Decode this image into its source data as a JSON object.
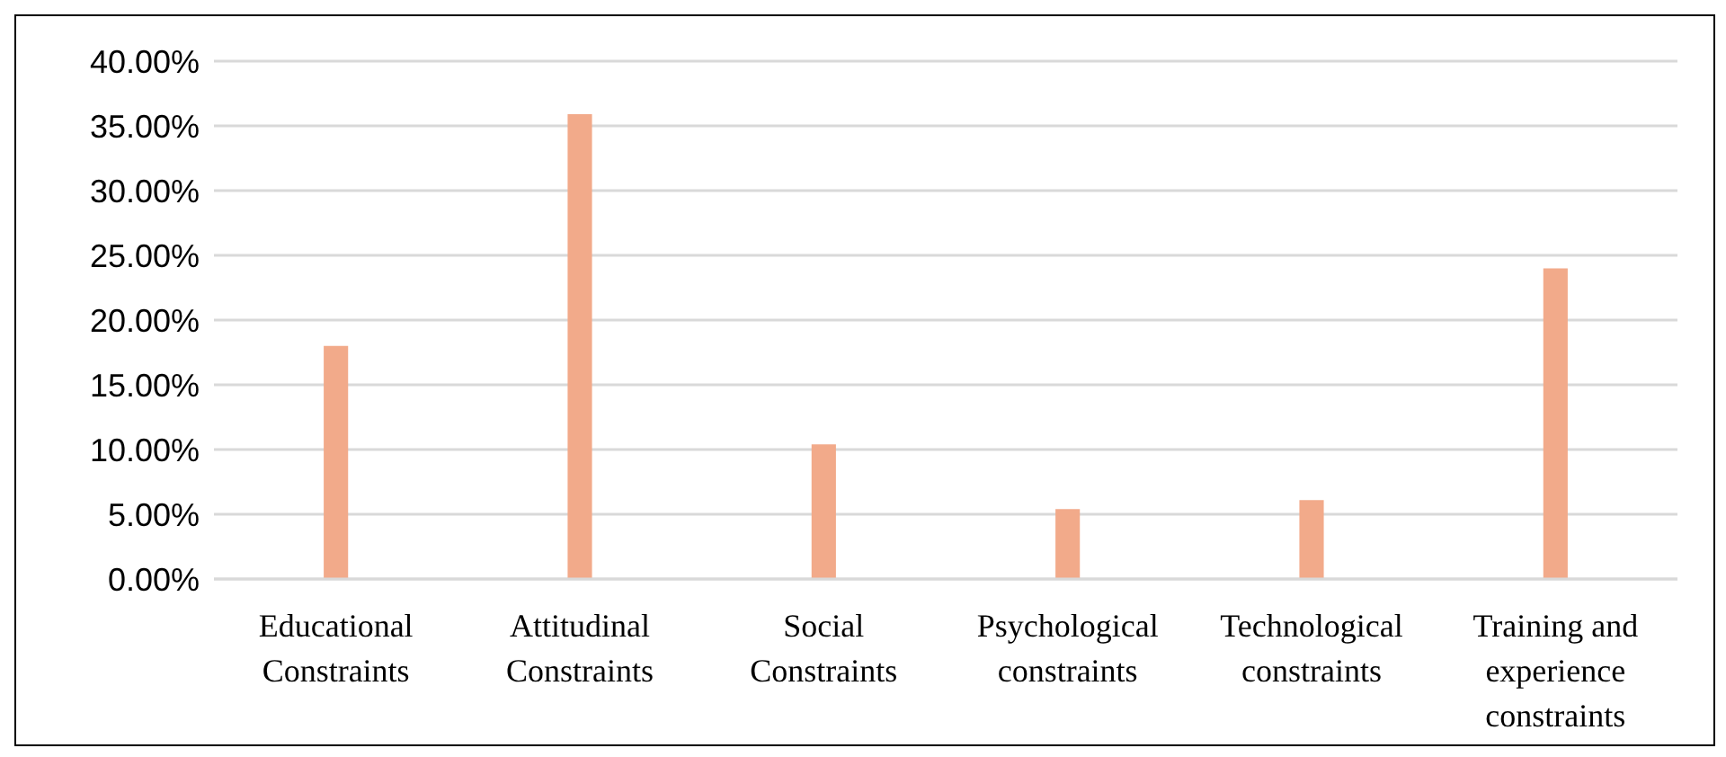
{
  "chart_data": {
    "type": "bar",
    "categories": [
      "Educational Constraints",
      "Attitudinal Constraints",
      "Social Constraints",
      "Psychological constraints",
      "Technological constraints",
      "Training and experience constraints"
    ],
    "values": [
      18.0,
      35.9,
      10.4,
      5.4,
      6.1,
      24.0
    ],
    "color": "#f2aa8a",
    "ylim": [
      0,
      40
    ],
    "yticks": [
      {
        "value": 0,
        "label": "0.00%"
      },
      {
        "value": 5,
        "label": "5.00%"
      },
      {
        "value": 10,
        "label": "10.00%"
      },
      {
        "value": 15,
        "label": "15.00%"
      },
      {
        "value": 20,
        "label": "20.00%"
      },
      {
        "value": 25,
        "label": "25.00%"
      },
      {
        "value": 30,
        "label": "30.00%"
      },
      {
        "value": 35,
        "label": "35.00%"
      },
      {
        "value": 40,
        "label": "40.00%"
      }
    ],
    "grid": "y"
  }
}
